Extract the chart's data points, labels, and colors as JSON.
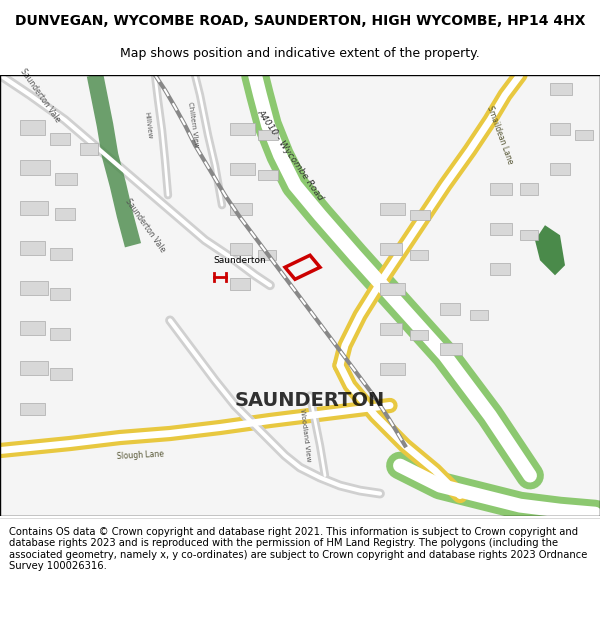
{
  "title_line1": "DUNVEGAN, WYCOMBE ROAD, SAUNDERTON, HIGH WYCOMBE, HP14 4HX",
  "title_line2": "Map shows position and indicative extent of the property.",
  "footer_text": "Contains OS data © Crown copyright and database right 2021. This information is subject to Crown copyright and database rights 2023 and is reproduced with the permission of HM Land Registry. The polygons (including the associated geometry, namely x, y co-ordinates) are subject to Crown copyright and database rights 2023 Ordnance Survey 100026316.",
  "background_color": "#f5f4f0",
  "map_bg": "#f8f8f8",
  "road_yellow": "#f0d060",
  "road_green": "#a8d080",
  "road_white": "#ffffff",
  "road_gray": "#d8d8d8",
  "dark_green": "#3a7a3a",
  "plot_color": "#cc0000",
  "title_fontsize": 10,
  "subtitle_fontsize": 9,
  "footer_fontsize": 7.5
}
